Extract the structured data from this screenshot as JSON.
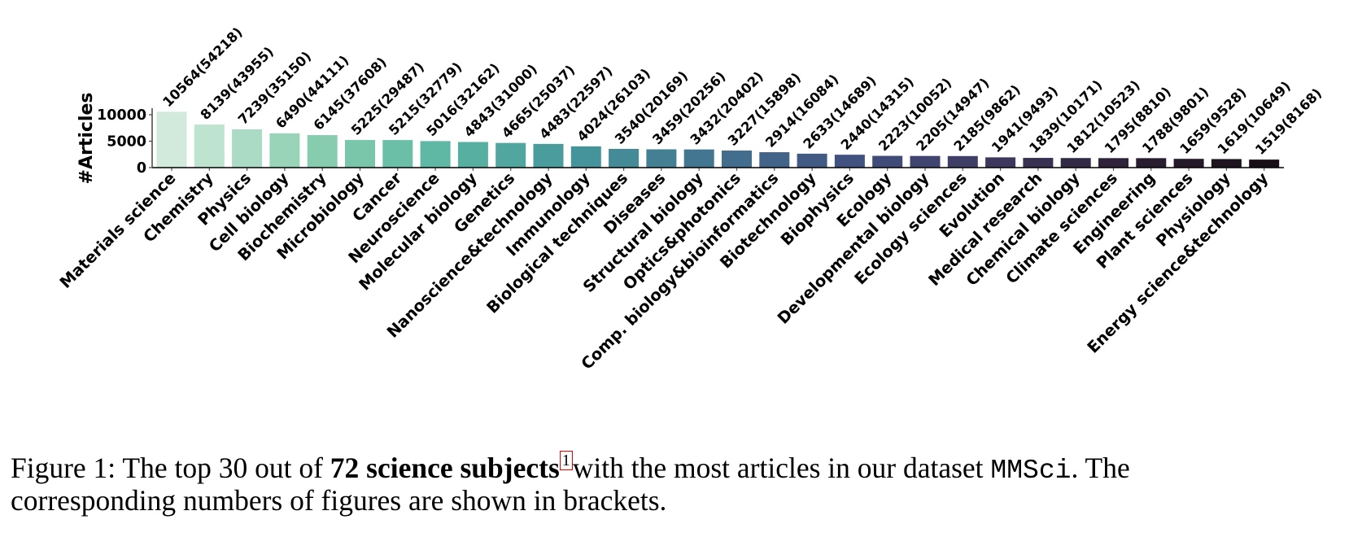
{
  "chart_data": {
    "type": "bar",
    "title": "",
    "xlabel": "",
    "ylabel": "#Articles",
    "ylim": [
      0,
      11000
    ],
    "yticks": [
      "0",
      "5000",
      "10000"
    ],
    "grid": false,
    "categories": [
      "Materials science",
      "Chemistry",
      "Physics",
      "Cell biology",
      "Biochemistry",
      "Microbiology",
      "Cancer",
      "Neuroscience",
      "Molecular biology",
      "Genetics",
      "Nanoscience&technology",
      "Immunology",
      "Biological techniques",
      "Diseases",
      "Structural biology",
      "Optics&photonics",
      "Comp. biology&bioinformatics",
      "Biotechnology",
      "Biophysics",
      "Ecology",
      "Developmental biology",
      "Ecology sciences",
      "Evolution",
      "Medical research",
      "Chemical biology",
      "Climate sciences",
      "Engineering",
      "Plant sciences",
      "Physiology",
      "Energy science&technology"
    ],
    "values": [
      10564,
      8139,
      7239,
      6490,
      6145,
      5225,
      5215,
      5016,
      4843,
      4665,
      4483,
      4024,
      3540,
      3459,
      3432,
      3227,
      2914,
      2633,
      2440,
      2223,
      2205,
      2185,
      1941,
      1839,
      1812,
      1795,
      1788,
      1659,
      1619,
      1519
    ],
    "figures": [
      54218,
      43955,
      35150,
      44111,
      37608,
      29487,
      32779,
      32162,
      31000,
      25037,
      22597,
      26103,
      20169,
      20256,
      20402,
      15898,
      16084,
      14689,
      14315,
      10052,
      14947,
      9862,
      9493,
      10171,
      10523,
      8810,
      9801,
      9528,
      10649,
      8168
    ],
    "data_labels": [
      "10564(54218)",
      "8139(43955)",
      "7239(35150)",
      "6490(44111)",
      "6145(37608)",
      "5225(29487)",
      "5215(32779)",
      "5016(32162)",
      "4843(31000)",
      "4665(25037)",
      "4483(22597)",
      "4024(26103)",
      "3540(20169)",
      "3459(20256)",
      "3432(20402)",
      "3227(15898)",
      "2914(16084)",
      "2633(14689)",
      "2440(14315)",
      "2223(10052)",
      "2205(14947)",
      "2185(9862)",
      "1941(9493)",
      "1839(10171)",
      "1812(10523)",
      "1795(8810)",
      "1788(9801)",
      "1659(9528)",
      "1619(10649)",
      "1519(8168)"
    ],
    "palette": [
      "#d1eadb",
      "#8dcfb1",
      "#5bb6a2",
      "#46959b",
      "#42718f",
      "#41517f",
      "#3f3961",
      "#2c2136",
      "#180f16"
    ]
  },
  "caption": {
    "prefix": "Figure 1: The top 30 out of ",
    "bold": "72 science subjects",
    "footnote": "1",
    "middle": "with the most articles in our dataset ",
    "dataset": "MMSci",
    "suffix": ". The",
    "line2": "corresponding numbers of figures are shown in brackets."
  }
}
